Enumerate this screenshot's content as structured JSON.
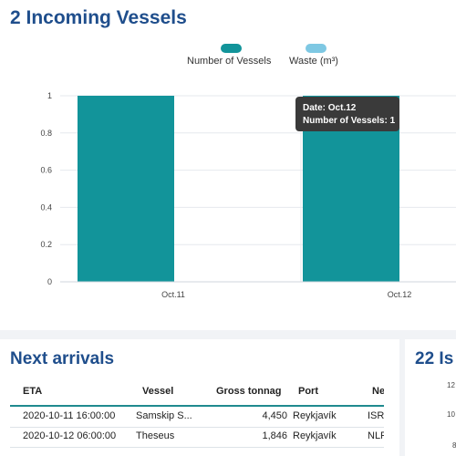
{
  "incoming": {
    "title": "2 Incoming Vessels"
  },
  "legend": [
    {
      "label": "Number of Vessels",
      "color": "#12949a"
    },
    {
      "label": "Waste (m³)",
      "color": "#7ec8e3"
    }
  ],
  "chart_data": {
    "type": "bar",
    "categories": [
      "Oct.11",
      "Oct.12"
    ],
    "series": [
      {
        "name": "Number of Vessels",
        "values": [
          1,
          1
        ],
        "color": "#12949a"
      },
      {
        "name": "Waste (m³)",
        "values": [
          0,
          0
        ],
        "color": "#7ec8e3"
      }
    ],
    "yticks": [
      "0",
      "0.2",
      "0.4",
      "0.6",
      "0.8",
      "1"
    ],
    "ylim": [
      0,
      1
    ],
    "grid": true
  },
  "tooltip": {
    "date": "Date: Oct.12",
    "vessels": "Number of Vessels: 1"
  },
  "arrivals": {
    "title": "Next arrivals",
    "columns": [
      "ETA",
      "Vessel",
      "Gross tonnage",
      "Port",
      "Ne"
    ],
    "rows": [
      [
        "2020-10-11 16:00:00",
        "Samskip S...",
        "4,450",
        "Reykjavík",
        "ISRE"
      ],
      [
        "2020-10-12 06:00:00",
        "Theseus",
        "1,846",
        "Reykjavík",
        "NLR"
      ]
    ]
  },
  "side": {
    "title": "22 Is",
    "ticks": [
      "12",
      "10",
      "8"
    ]
  }
}
